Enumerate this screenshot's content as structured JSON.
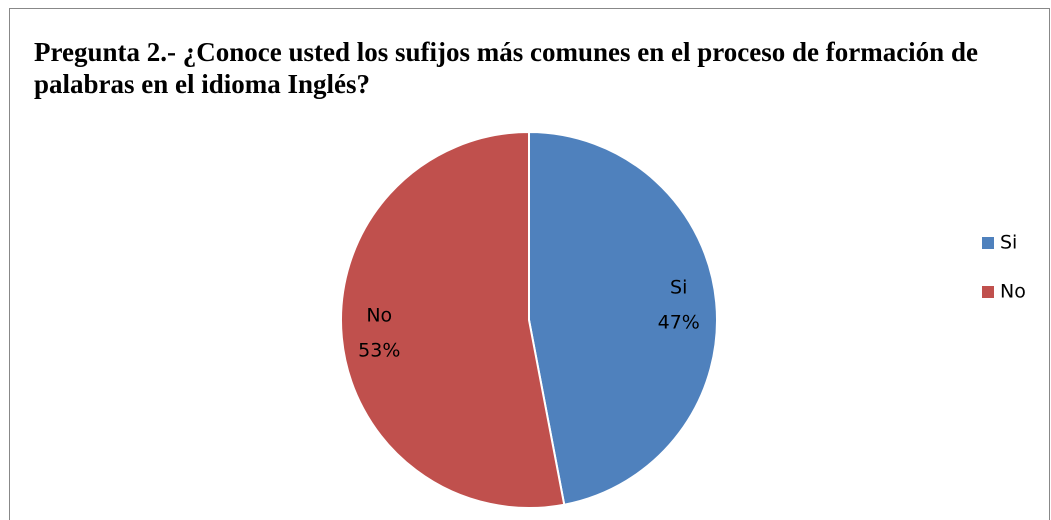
{
  "chart_data": {
    "type": "pie",
    "title": "Pregunta 2.- ¿Conoce usted los sufijos más comunes en el proceso de formación de palabras en el idioma Inglés?",
    "categories": [
      "Si",
      "No"
    ],
    "values": [
      47,
      53
    ],
    "value_labels": [
      "47%",
      "53%"
    ],
    "colors": [
      "#4f81bd",
      "#c0504d"
    ],
    "legend": "right"
  }
}
